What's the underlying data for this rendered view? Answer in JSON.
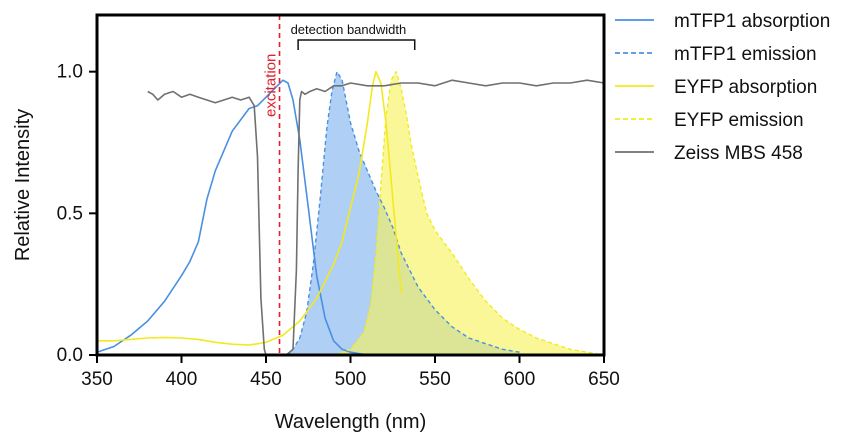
{
  "chart_data": {
    "type": "line",
    "xlabel": "Wavelength (nm)",
    "ylabel": "Relative Intensity",
    "xlim": [
      350,
      650
    ],
    "ylim": [
      0,
      1.2
    ],
    "x_ticks": [
      "350",
      "400",
      "450",
      "500",
      "550",
      "600",
      "650"
    ],
    "x_tick_values": [
      350,
      400,
      450,
      500,
      550,
      600,
      650
    ],
    "y_ticks": [
      "0.0",
      "0.5",
      "1.0"
    ],
    "y_tick_values": [
      0,
      0.5,
      1.0
    ],
    "grid": false,
    "legend_position": "right",
    "series": [
      {
        "name": "mTFP1 absorption",
        "style": "solid",
        "color": "#4a90e2",
        "fill": false,
        "x": [
          350,
          360,
          370,
          380,
          390,
          400,
          405,
          410,
          415,
          420,
          430,
          440,
          445,
          450,
          455,
          460,
          463,
          466,
          470,
          475,
          480,
          485,
          490,
          495,
          500,
          510
        ],
        "y": [
          0.01,
          0.03,
          0.07,
          0.12,
          0.19,
          0.28,
          0.33,
          0.4,
          0.55,
          0.65,
          0.79,
          0.87,
          0.88,
          0.91,
          0.94,
          0.97,
          0.96,
          0.9,
          0.76,
          0.52,
          0.28,
          0.13,
          0.05,
          0.02,
          0.01,
          0.0
        ]
      },
      {
        "name": "mTFP1 emission",
        "style": "dashed",
        "color": "#4a90e2",
        "fill": true,
        "fill_color": "#7fb1ee",
        "x": [
          462,
          466,
          470,
          474,
          478,
          482,
          486,
          489,
          492,
          495,
          500,
          505,
          510,
          515,
          520,
          525,
          530,
          540,
          550,
          560,
          570,
          580,
          590,
          600
        ],
        "y": [
          0.0,
          0.02,
          0.06,
          0.15,
          0.32,
          0.55,
          0.8,
          0.93,
          1.0,
          0.97,
          0.82,
          0.72,
          0.65,
          0.58,
          0.52,
          0.45,
          0.36,
          0.24,
          0.16,
          0.1,
          0.06,
          0.04,
          0.02,
          0.01
        ]
      },
      {
        "name": "EYFP absorption",
        "style": "solid",
        "color": "#f2ea1e",
        "fill": false,
        "x": [
          350,
          360,
          370,
          380,
          390,
          400,
          410,
          420,
          430,
          440,
          450,
          460,
          470,
          480,
          490,
          495,
          500,
          505,
          510,
          513,
          515,
          518,
          521,
          524,
          527,
          530
        ],
        "y": [
          0.05,
          0.05,
          0.055,
          0.06,
          0.062,
          0.06,
          0.055,
          0.045,
          0.038,
          0.035,
          0.045,
          0.07,
          0.12,
          0.2,
          0.32,
          0.4,
          0.52,
          0.64,
          0.82,
          0.95,
          1.0,
          0.96,
          0.82,
          0.62,
          0.42,
          0.22
        ]
      },
      {
        "name": "EYFP emission",
        "style": "dashed",
        "color": "#f2ea1e",
        "fill": true,
        "fill_color": "#f7f25a",
        "x": [
          490,
          500,
          508,
          512,
          515,
          518,
          521,
          524,
          527,
          530,
          533,
          536,
          540,
          545,
          550,
          555,
          560,
          570,
          580,
          590,
          600,
          610,
          620,
          630,
          640,
          650
        ],
        "y": [
          0.0,
          0.02,
          0.08,
          0.18,
          0.35,
          0.6,
          0.84,
          0.97,
          1.0,
          0.94,
          0.85,
          0.74,
          0.63,
          0.5,
          0.44,
          0.4,
          0.36,
          0.27,
          0.19,
          0.13,
          0.09,
          0.06,
          0.04,
          0.02,
          0.01,
          0.0
        ]
      },
      {
        "name": "Zeiss MBS 458",
        "style": "solid",
        "color": "#707070",
        "fill": false,
        "x": [
          380,
          383,
          386,
          390,
          395,
          400,
          405,
          410,
          415,
          420,
          425,
          430,
          435,
          440,
          443,
          445,
          447,
          449,
          450,
          453,
          457,
          462,
          466,
          468,
          469,
          470,
          471,
          473,
          476,
          480,
          485,
          490,
          495,
          500,
          510,
          520,
          530,
          540,
          550,
          560,
          570,
          580,
          590,
          600,
          610,
          620,
          630,
          640,
          650
        ],
        "y": [
          0.93,
          0.92,
          0.9,
          0.92,
          0.93,
          0.91,
          0.92,
          0.91,
          0.9,
          0.89,
          0.9,
          0.91,
          0.9,
          0.91,
          0.88,
          0.7,
          0.2,
          0.02,
          0.0,
          0.0,
          0.0,
          0.0,
          0.02,
          0.3,
          0.65,
          0.9,
          0.93,
          0.92,
          0.93,
          0.94,
          0.93,
          0.95,
          0.95,
          0.96,
          0.95,
          0.95,
          0.96,
          0.96,
          0.95,
          0.97,
          0.96,
          0.95,
          0.96,
          0.96,
          0.95,
          0.96,
          0.96,
          0.97,
          0.96
        ]
      }
    ],
    "annotations": {
      "excitation": {
        "label": "excitation",
        "x": 458,
        "color": "#e0202a"
      },
      "detection": {
        "label": "detection bandwidth",
        "x_start": 469,
        "x_end": 538
      }
    }
  }
}
